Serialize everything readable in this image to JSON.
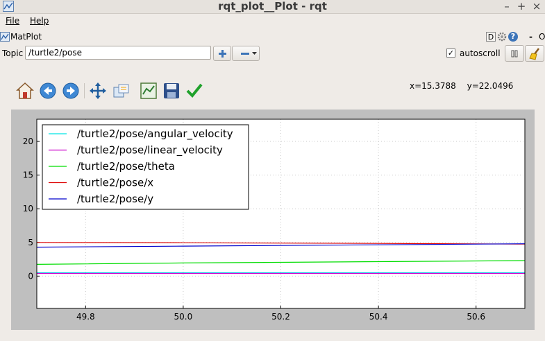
{
  "window": {
    "title": "rqt_plot__Plot - rqt",
    "controls": {
      "minimize": "–",
      "maximize": "+",
      "close": "×"
    }
  },
  "menu": {
    "file": "File",
    "help": "Help"
  },
  "plugin": {
    "title": "MatPlot",
    "help_d": "D",
    "help_q": "?",
    "dash": "-",
    "o_label": "O"
  },
  "topic": {
    "label": "Topic",
    "value": "/turtle2/pose"
  },
  "autoscroll": {
    "label": "autoscroll",
    "checked": "✓"
  },
  "toolbar_icons": [
    "home-icon",
    "back-icon",
    "forward-icon",
    "pan-icon",
    "zoom-icon",
    "subplots-icon",
    "save-icon",
    "apply-icon"
  ],
  "coords": {
    "text": "x=15.3788 y=22.0496"
  },
  "colors": {
    "accent": "#3c74b8",
    "plot_bg": "#bfbfbf"
  },
  "chart_data": {
    "type": "line",
    "title": "",
    "xlabel": "",
    "ylabel": "",
    "xlim": [
      49.7,
      50.7
    ],
    "ylim": [
      -4.8,
      23.3
    ],
    "xticks": [
      "49.8",
      "50.0",
      "50.2",
      "50.4",
      "50.6"
    ],
    "xtick_values": [
      49.8,
      50.0,
      50.2,
      50.4,
      50.6
    ],
    "yticks": [
      "0",
      "5",
      "10",
      "15",
      "20"
    ],
    "ytick_values": [
      0,
      5,
      10,
      15,
      20
    ],
    "grid": true,
    "legend_position": "top-left",
    "series": [
      {
        "name": "/turtle2/pose/angular_velocity",
        "color": "#00e5e5",
        "x": [
          49.7,
          50.7
        ],
        "y": [
          0.5,
          0.5
        ]
      },
      {
        "name": "/turtle2/pose/linear_velocity",
        "color": "#cc00cc",
        "x": [
          49.7,
          50.7
        ],
        "y": [
          0.4,
          0.4
        ]
      },
      {
        "name": "/turtle2/pose/theta",
        "color": "#00dd00",
        "x": [
          49.7,
          50.0,
          50.4,
          50.7
        ],
        "y": [
          1.75,
          1.95,
          2.15,
          2.3
        ]
      },
      {
        "name": "/turtle2/pose/x",
        "color": "#dd0000",
        "x": [
          49.7,
          50.0,
          50.4,
          50.7
        ],
        "y": [
          5.0,
          4.95,
          4.85,
          4.75
        ]
      },
      {
        "name": "/turtle2/pose/y",
        "color": "#0000cc",
        "x": [
          49.7,
          50.0,
          50.4,
          50.7
        ],
        "y": [
          4.3,
          4.45,
          4.65,
          4.8
        ]
      }
    ]
  }
}
